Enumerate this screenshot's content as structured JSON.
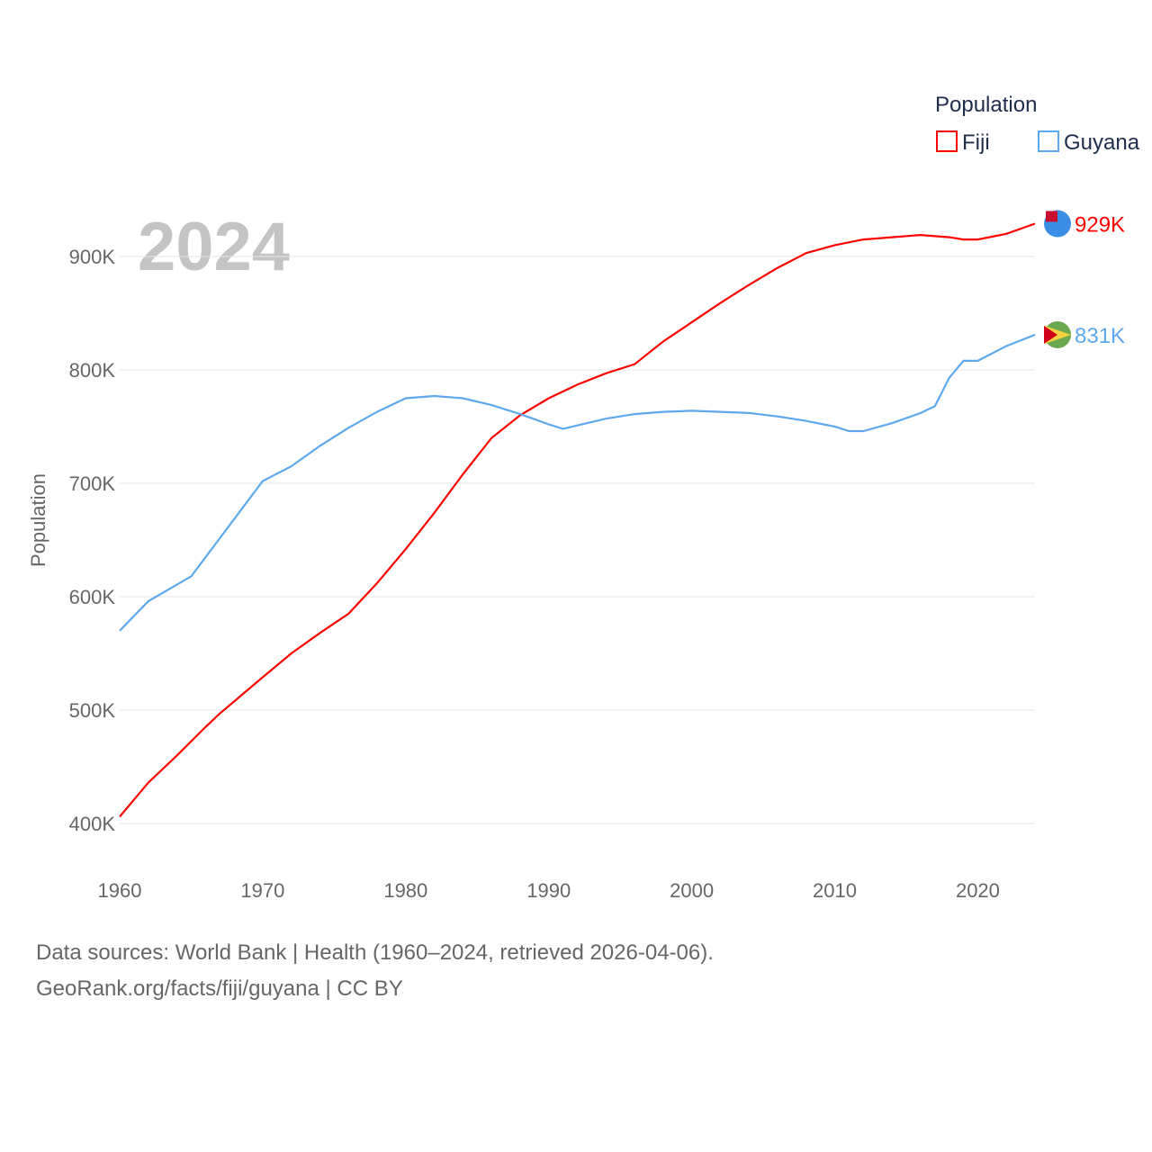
{
  "chart_data": {
    "type": "line",
    "year_label": "2024",
    "ylabel": "Population",
    "xlim": [
      1960,
      2024
    ],
    "ylim": [
      400000,
      900000
    ],
    "yticks": [
      {
        "v": 400000,
        "label": "400K"
      },
      {
        "v": 500000,
        "label": "500K"
      },
      {
        "v": 600000,
        "label": "600K"
      },
      {
        "v": 700000,
        "label": "700K"
      },
      {
        "v": 800000,
        "label": "800K"
      },
      {
        "v": 900000,
        "label": "900K"
      }
    ],
    "xticks": [
      {
        "v": 1960,
        "label": "1960"
      },
      {
        "v": 1970,
        "label": "1970"
      },
      {
        "v": 1980,
        "label": "1980"
      },
      {
        "v": 1990,
        "label": "1990"
      },
      {
        "v": 2000,
        "label": "2000"
      },
      {
        "v": 2010,
        "label": "2010"
      },
      {
        "v": 2020,
        "label": "2020"
      }
    ],
    "legend": {
      "title": "Population",
      "placement": "top-right"
    },
    "series": [
      {
        "name": "Fiji",
        "color": "#ff0000",
        "end_label": "929K",
        "x": [
          1960,
          1962,
          1964,
          1966,
          1967,
          1970,
          1972,
          1974,
          1976,
          1978,
          1980,
          1982,
          1984,
          1986,
          1988,
          1990,
          1992,
          1994,
          1996,
          1998,
          2000,
          2002,
          2004,
          2006,
          2008,
          2010,
          2012,
          2014,
          2016,
          2018,
          2019,
          2020,
          2022,
          2024
        ],
        "values": [
          406000,
          436000,
          460000,
          485000,
          497000,
          529000,
          550000,
          568000,
          585000,
          612000,
          642000,
          674000,
          708000,
          740000,
          760000,
          775000,
          787000,
          797000,
          805000,
          825000,
          842000,
          859000,
          875000,
          890000,
          903000,
          910000,
          915000,
          917000,
          919000,
          917000,
          915000,
          915000,
          920000,
          929000
        ]
      },
      {
        "name": "Guyana",
        "color": "#5ea8ee",
        "end_label": "831K",
        "x": [
          1960,
          1962,
          1965,
          1970,
          1972,
          1974,
          1976,
          1978,
          1980,
          1982,
          1984,
          1986,
          1988,
          1990,
          1991,
          1992,
          1994,
          1996,
          1998,
          2000,
          2002,
          2004,
          2006,
          2008,
          2010,
          2011,
          2012,
          2014,
          2016,
          2017,
          2018,
          2019,
          2020,
          2022,
          2024
        ],
        "values": [
          570000,
          596000,
          618000,
          702000,
          715000,
          733000,
          749000,
          763000,
          775000,
          777000,
          775000,
          769000,
          761000,
          752000,
          748000,
          751000,
          757000,
          761000,
          763000,
          764000,
          763000,
          762000,
          759000,
          755000,
          750000,
          746000,
          746000,
          753000,
          762000,
          768000,
          793000,
          808000,
          808000,
          821000,
          831000
        ]
      }
    ]
  },
  "footer": {
    "line1": "Data sources: World Bank | Health (1960–2024, retrieved 2026-04-06).",
    "line2": "GeoRank.org/facts/fiji/guyana | CC BY"
  }
}
